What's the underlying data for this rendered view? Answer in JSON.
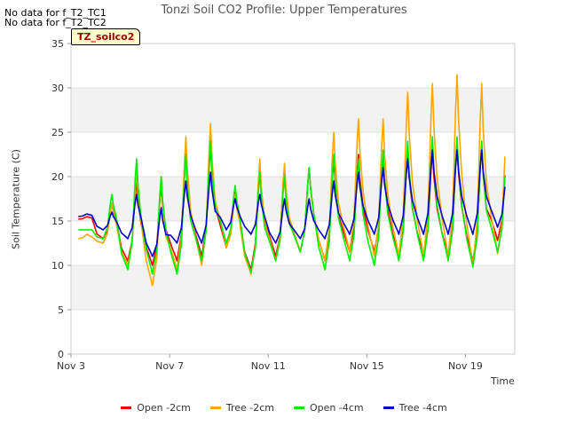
{
  "notes": [
    "No data for f_T2_TC1",
    "No data for f_T2_TC2"
  ],
  "site_label": "TZ_soilco2",
  "chart_data": {
    "type": "line",
    "title": "Tonzi Soil CO2 Profile: Upper Temperatures",
    "xlabel": "Time",
    "ylabel": "Soil Temperature (C)",
    "ylim": [
      0,
      35
    ],
    "y_ticks": [
      0,
      5,
      10,
      15,
      20,
      25,
      30,
      35
    ],
    "x_ticks": [
      {
        "day": 3,
        "label": "Nov 3"
      },
      {
        "day": 7,
        "label": "Nov 7"
      },
      {
        "day": 11,
        "label": "Nov 11"
      },
      {
        "day": 15,
        "label": "Nov 15"
      },
      {
        "day": 19,
        "label": "Nov 19"
      }
    ],
    "xlim_days": [
      3,
      21
    ],
    "grid": "horizontal bands",
    "legend_position": "bottom",
    "series": [
      {
        "name": "Open -2cm",
        "color": "#ee0000",
        "peaks": [
          15.5,
          17.0,
          19.5,
          19.0,
          22.5,
          23.5,
          18.5,
          21.5,
          20.5,
          21.0,
          22.0,
          22.5,
          22.5,
          23.0,
          23.0,
          23.5,
          23.5,
          22.0
        ],
        "minimums": [
          15.2,
          13.0,
          10.5,
          10.0,
          10.5,
          11.0,
          12.0,
          9.5,
          11.0,
          11.5,
          10.5,
          11.5,
          11.5,
          11.0,
          11.0,
          11.0,
          10.5,
          12.8
        ]
      },
      {
        "name": "Tree -2cm",
        "color": "#ffa500",
        "peaks": [
          13.5,
          17.0,
          20.5,
          20.0,
          24.5,
          26.0,
          18.0,
          22.0,
          21.5,
          21.0,
          25.0,
          26.5,
          26.5,
          29.5,
          30.5,
          31.5,
          30.5,
          25.0
        ],
        "minimums": [
          13.0,
          12.5,
          10.0,
          7.7,
          9.5,
          10.0,
          12.0,
          9.0,
          10.5,
          11.5,
          10.5,
          11.5,
          11.0,
          11.0,
          11.0,
          11.0,
          10.0,
          11.3
        ]
      },
      {
        "name": "Open -4cm",
        "color": "#00ee00",
        "peaks": [
          14.0,
          18.0,
          22.0,
          20.0,
          22.5,
          24.0,
          19.0,
          20.5,
          20.0,
          21.0,
          22.5,
          22.0,
          23.0,
          24.0,
          24.5,
          24.5,
          24.0,
          22.0
        ],
        "minimums": [
          14.0,
          13.0,
          9.5,
          9.0,
          9.0,
          10.5,
          12.5,
          9.2,
          10.5,
          11.5,
          9.5,
          10.5,
          10.0,
          10.5,
          10.5,
          10.5,
          9.8,
          11.5
        ]
      },
      {
        "name": "Tree -4cm",
        "color": "#0000cc",
        "peaks": [
          15.8,
          16.0,
          18.0,
          16.5,
          19.5,
          20.5,
          17.5,
          18.0,
          17.5,
          17.5,
          19.5,
          20.5,
          21.0,
          22.0,
          23.0,
          23.0,
          23.0,
          20.0
        ],
        "minimums": [
          15.5,
          14.0,
          13.0,
          11.0,
          12.5,
          12.5,
          14.0,
          13.5,
          12.5,
          13.0,
          13.0,
          13.5,
          13.5,
          13.5,
          13.5,
          13.5,
          13.5,
          14.3
        ]
      }
    ]
  }
}
